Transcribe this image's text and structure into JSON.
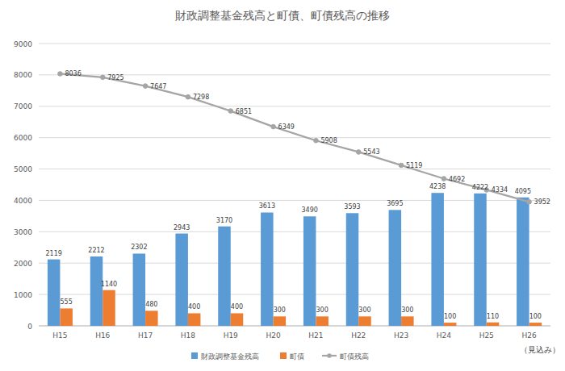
{
  "chart_data": {
    "type": "bar",
    "title": "財政調整基金残高と町債、町債残高の推移",
    "categories": [
      "H15",
      "H16",
      "H17",
      "H18",
      "H19",
      "H20",
      "H21",
      "H22",
      "H23",
      "H24",
      "H25",
      "H26"
    ],
    "series": [
      {
        "name": "財政調整基金残高",
        "type": "bar",
        "color": "#5b9bd5",
        "values": [
          2119,
          2212,
          2302,
          2943,
          3170,
          3613,
          3490,
          3593,
          3695,
          4238,
          4222,
          4095
        ]
      },
      {
        "name": "町債",
        "type": "bar",
        "color": "#ed7d31",
        "values": [
          555,
          1140,
          480,
          400,
          400,
          300,
          300,
          300,
          300,
          100,
          110,
          100
        ]
      },
      {
        "name": "町債残高",
        "type": "line",
        "color": "#a5a5a5",
        "marker": "circle",
        "values": [
          8036,
          7925,
          7647,
          7298,
          6851,
          6349,
          5908,
          5543,
          5119,
          4692,
          4334,
          3952
        ]
      }
    ],
    "ylim": [
      0,
      9000
    ],
    "yticks": [
      0,
      1000,
      2000,
      3000,
      4000,
      5000,
      6000,
      7000,
      8000,
      9000
    ],
    "grid": true,
    "legend": "bottom",
    "data_labels": true,
    "annotations": [
      "（見込み）"
    ]
  }
}
